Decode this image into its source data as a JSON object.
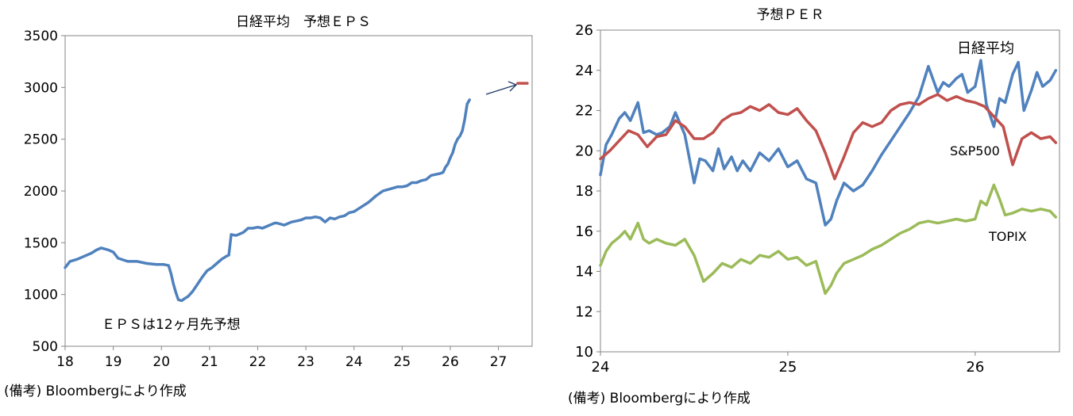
{
  "chart_data": [
    {
      "type": "line",
      "title": "日経平均　予想ＥＰＳ",
      "annotation": "ＥＰＳは12ヶ月先予想",
      "source": "(備考) Bloombergにより作成",
      "x_ticks": [
        "18",
        "19",
        "20",
        "21",
        "22",
        "23",
        "24",
        "25",
        "26",
        "27"
      ],
      "y_ticks": [
        "500",
        "1000",
        "1500",
        "2000",
        "2500",
        "3000",
        "3500"
      ],
      "xlim": [
        18,
        27.7
      ],
      "ylim": [
        500,
        3500
      ],
      "grid": false,
      "series": [
        {
          "color": "#4f81bd",
          "x": [
            18.0,
            18.1,
            18.25,
            18.4,
            18.55,
            18.65,
            18.75,
            18.9,
            19.0,
            19.1,
            19.3,
            19.5,
            19.7,
            19.9,
            20.05,
            20.15,
            20.2,
            20.25,
            20.3,
            20.35,
            20.42,
            20.48,
            20.55,
            20.65,
            20.75,
            20.85,
            20.95,
            21.05,
            21.15,
            21.25,
            21.35,
            21.4,
            21.45,
            21.55,
            21.65,
            21.7,
            21.8,
            21.9,
            22.0,
            22.1,
            22.2,
            22.3,
            22.35,
            22.4,
            22.55,
            22.7,
            22.8,
            22.9,
            23.0,
            23.1,
            23.2,
            23.3,
            23.4,
            23.5,
            23.6,
            23.7,
            23.8,
            23.9,
            24.0,
            24.1,
            24.2,
            24.3,
            24.45,
            24.6,
            24.75,
            24.9,
            25.0,
            25.1,
            25.2,
            25.3,
            25.4,
            25.5,
            25.6,
            25.7,
            25.8,
            25.85,
            25.9,
            25.95,
            26.0,
            26.05,
            26.1,
            26.15,
            26.2,
            26.25,
            26.3,
            26.35,
            26.4
          ],
          "values": [
            1260,
            1320,
            1340,
            1370,
            1400,
            1430,
            1450,
            1430,
            1410,
            1350,
            1320,
            1320,
            1300,
            1290,
            1290,
            1280,
            1200,
            1100,
            1020,
            950,
            940,
            960,
            980,
            1030,
            1100,
            1170,
            1230,
            1260,
            1300,
            1340,
            1370,
            1380,
            1580,
            1570,
            1590,
            1600,
            1640,
            1640,
            1650,
            1640,
            1660,
            1680,
            1690,
            1690,
            1670,
            1700,
            1710,
            1720,
            1740,
            1740,
            1750,
            1740,
            1700,
            1740,
            1730,
            1750,
            1760,
            1790,
            1800,
            1830,
            1860,
            1890,
            1950,
            2000,
            2020,
            2040,
            2040,
            2050,
            2080,
            2080,
            2100,
            2110,
            2150,
            2160,
            2170,
            2180,
            2230,
            2260,
            2320,
            2370,
            2450,
            2500,
            2530,
            2580,
            2690,
            2840,
            2880
          ]
        },
        {
          "color": "#c0504d",
          "x": [
            27.4,
            27.6
          ],
          "values": [
            3040,
            3040
          ]
        }
      ]
    },
    {
      "type": "line",
      "title": "予想ＰＥＲ",
      "source": "(備考) Bloombergにより作成",
      "x_ticks": [
        "24",
        "25",
        "26"
      ],
      "y_ticks": [
        "10",
        "12",
        "14",
        "16",
        "18",
        "20",
        "22",
        "24",
        "26"
      ],
      "xlim": [
        24,
        26.45
      ],
      "ylim": [
        10,
        26
      ],
      "grid": false,
      "series": [
        {
          "name": "日経平均",
          "color": "#4f81bd",
          "x": [
            24.0,
            24.03,
            24.06,
            24.1,
            24.13,
            24.16,
            24.2,
            24.23,
            24.26,
            24.3,
            24.33,
            24.37,
            24.4,
            24.45,
            24.5,
            24.53,
            24.56,
            24.6,
            24.63,
            24.66,
            24.7,
            24.73,
            24.76,
            24.8,
            24.85,
            24.9,
            24.95,
            25.0,
            25.05,
            25.1,
            25.15,
            25.2,
            25.23,
            25.26,
            25.3,
            25.35,
            25.4,
            25.45,
            25.5,
            25.55,
            25.6,
            25.65,
            25.7,
            25.75,
            25.8,
            25.83,
            25.86,
            25.9,
            25.93,
            25.96,
            26.0,
            26.03,
            26.06,
            26.1,
            26.13,
            26.16,
            26.2,
            26.23,
            26.26,
            26.3,
            26.33,
            26.36,
            26.4,
            26.43
          ],
          "values": [
            18.8,
            20.3,
            20.8,
            21.6,
            21.9,
            21.5,
            22.4,
            20.9,
            21.0,
            20.8,
            20.9,
            21.2,
            21.9,
            20.8,
            18.4,
            19.6,
            19.5,
            19.0,
            20.1,
            19.1,
            19.7,
            19.0,
            19.5,
            19.0,
            19.9,
            19.5,
            20.1,
            19.2,
            19.5,
            18.6,
            18.4,
            16.3,
            16.6,
            17.5,
            18.4,
            18.0,
            18.3,
            19.0,
            19.8,
            20.5,
            21.2,
            21.9,
            22.7,
            24.2,
            22.9,
            23.4,
            23.2,
            23.6,
            23.8,
            22.9,
            23.2,
            24.5,
            22.3,
            21.2,
            22.6,
            22.4,
            23.8,
            24.4,
            22.0,
            23.0,
            23.9,
            23.2,
            23.5,
            24.0
          ]
        },
        {
          "name": "S&P500",
          "color": "#c0504d",
          "x": [
            24.0,
            24.05,
            24.1,
            24.15,
            24.2,
            24.25,
            24.3,
            24.35,
            24.4,
            24.45,
            24.5,
            24.55,
            24.6,
            24.65,
            24.7,
            24.75,
            24.8,
            24.85,
            24.9,
            24.95,
            25.0,
            25.05,
            25.1,
            25.15,
            25.2,
            25.25,
            25.3,
            25.35,
            25.4,
            25.45,
            25.5,
            25.55,
            25.6,
            25.65,
            25.7,
            25.75,
            25.8,
            25.85,
            25.9,
            25.95,
            26.0,
            26.05,
            26.1,
            26.15,
            26.2,
            26.25,
            26.3,
            26.35,
            26.4,
            26.43
          ],
          "values": [
            19.6,
            20.0,
            20.5,
            21.0,
            20.8,
            20.2,
            20.7,
            20.8,
            21.5,
            21.2,
            20.6,
            20.6,
            20.9,
            21.5,
            21.8,
            21.9,
            22.2,
            22.0,
            22.3,
            21.9,
            21.8,
            22.1,
            21.5,
            21.0,
            19.9,
            18.6,
            19.7,
            20.9,
            21.4,
            21.2,
            21.4,
            22.0,
            22.3,
            22.4,
            22.3,
            22.6,
            22.8,
            22.5,
            22.7,
            22.5,
            22.4,
            22.2,
            21.7,
            21.2,
            19.3,
            20.6,
            20.9,
            20.6,
            20.7,
            20.4
          ]
        },
        {
          "name": "TOPIX",
          "color": "#9bbb59",
          "x": [
            24.0,
            24.03,
            24.06,
            24.1,
            24.13,
            24.16,
            24.2,
            24.23,
            24.26,
            24.3,
            24.35,
            24.4,
            24.45,
            24.5,
            24.55,
            24.6,
            24.65,
            24.7,
            24.75,
            24.8,
            24.85,
            24.9,
            24.95,
            25.0,
            25.05,
            25.1,
            25.15,
            25.2,
            25.23,
            25.26,
            25.3,
            25.35,
            25.4,
            25.45,
            25.5,
            25.55,
            25.6,
            25.65,
            25.7,
            25.75,
            25.8,
            25.85,
            25.9,
            25.95,
            26.0,
            26.03,
            26.06,
            26.1,
            26.13,
            26.16,
            26.2,
            26.25,
            26.3,
            26.35,
            26.4,
            26.43
          ],
          "values": [
            14.3,
            15.0,
            15.4,
            15.7,
            16.0,
            15.6,
            16.4,
            15.6,
            15.4,
            15.6,
            15.4,
            15.3,
            15.6,
            14.8,
            13.5,
            13.9,
            14.4,
            14.2,
            14.6,
            14.4,
            14.8,
            14.7,
            15.0,
            14.6,
            14.7,
            14.3,
            14.5,
            12.9,
            13.3,
            13.9,
            14.4,
            14.6,
            14.8,
            15.1,
            15.3,
            15.6,
            15.9,
            16.1,
            16.4,
            16.5,
            16.4,
            16.5,
            16.6,
            16.5,
            16.6,
            17.5,
            17.3,
            18.3,
            17.6,
            16.8,
            16.9,
            17.1,
            17.0,
            17.1,
            17.0,
            16.7
          ]
        }
      ]
    }
  ]
}
